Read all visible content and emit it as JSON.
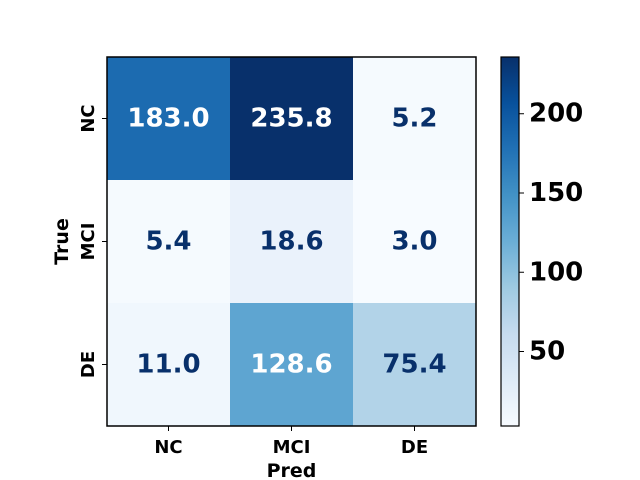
{
  "chart_data": {
    "type": "heatmap",
    "title": "",
    "xlabel": "Pred",
    "ylabel": "True",
    "x_categories": [
      "NC",
      "MCI",
      "DE"
    ],
    "y_categories": [
      "NC",
      "MCI",
      "DE"
    ],
    "values": [
      [
        183.0,
        235.8,
        5.2
      ],
      [
        5.4,
        18.6,
        3.0
      ],
      [
        11.0,
        128.6,
        75.4
      ]
    ],
    "value_labels": [
      [
        "183.0",
        "235.8",
        "5.2"
      ],
      [
        "5.4",
        "18.6",
        "3.0"
      ],
      [
        "11.0",
        "128.6",
        "75.4"
      ]
    ],
    "colormap": "Blues",
    "vmin": 3.0,
    "vmax": 235.8,
    "colorbar_ticks": [
      50,
      100,
      150,
      200
    ],
    "colorbar_tick_labels": [
      "50",
      "100",
      "150",
      "200"
    ],
    "text_colors": {
      "light": "#ffffff",
      "dark": "#08306b"
    }
  }
}
